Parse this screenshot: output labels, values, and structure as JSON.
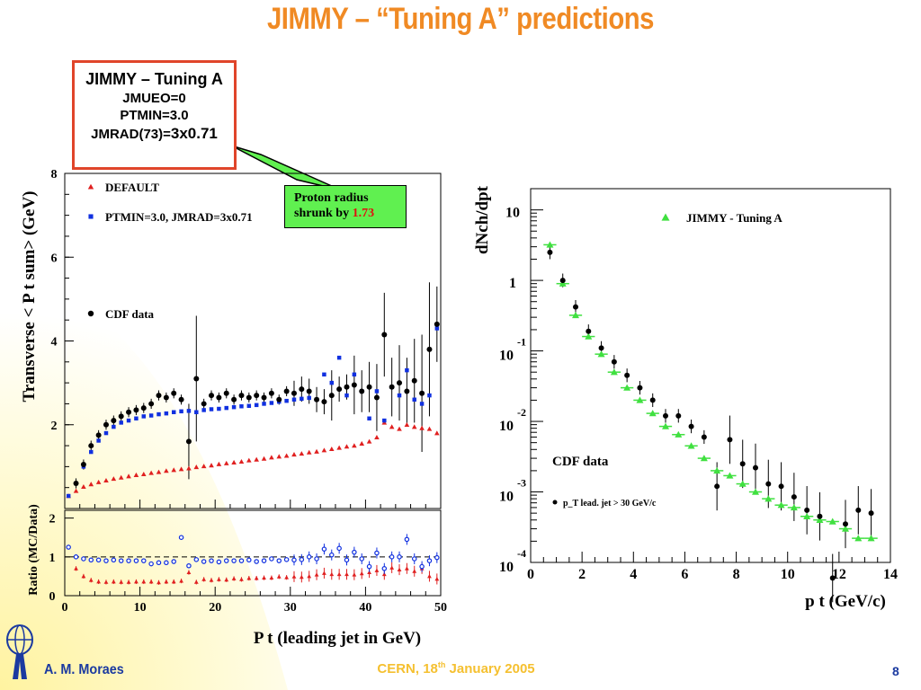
{
  "slide": {
    "title": "JIMMY – “Tuning A” predictions",
    "author": "A. M. Moraes",
    "venue": "CERN, 18",
    "venue_sup": "th",
    "venue_rest": " January 2005",
    "page": "8"
  },
  "tuning_box": {
    "title": "JIMMY – Tuning A",
    "line1": "JMUEO=0",
    "line2": "PTMIN=3.0",
    "line3_prefix": "JMRAD(73)=",
    "line3_value": "3x0.71"
  },
  "note": {
    "text": "Proton radius shrunk by ",
    "value": "1.73",
    "color_bg": "#60f050",
    "color_value": "#e01010"
  },
  "colors": {
    "default": "#e02020",
    "ptmin": "#1030e0",
    "cdf": "#000000",
    "jimmy": "#40e040",
    "title": "#f08a24",
    "box_border": "#e0452a"
  },
  "chart_data": [
    {
      "type": "scatter",
      "ylabel": "Transverse < P_t sum> (GeV)",
      "xlim": [
        0,
        50
      ],
      "ylim": [
        0,
        8
      ],
      "x_ticks": [
        "0",
        "10",
        "20",
        "30",
        "40",
        "50"
      ],
      "y_ticks": [
        "2",
        "4",
        "6",
        "8"
      ],
      "legend": [
        "DEFAULT",
        "PTMIN=3.0, JMRAD=3x0.71",
        "CDF data"
      ],
      "legend_placement": "top-left",
      "series": [
        {
          "name": "DEFAULT",
          "marker": "triangle",
          "x": [
            0.5,
            1.5,
            2.5,
            3.5,
            4.5,
            5.5,
            6.5,
            7.5,
            8.5,
            9.5,
            10.5,
            11.5,
            12.5,
            13.5,
            14.5,
            15.5,
            16.5,
            17.5,
            18.5,
            19.5,
            20.5,
            21.5,
            22.5,
            23.5,
            24.5,
            25.5,
            26.5,
            27.5,
            28.5,
            29.5,
            30.5,
            31.5,
            32.5,
            33.5,
            34.5,
            35.5,
            36.5,
            37.5,
            38.5,
            39.5,
            40.5,
            41.5,
            42.5,
            43.5,
            44.5,
            45.5,
            46.5,
            47.5,
            48.5,
            49.5
          ],
          "y": [
            0.3,
            0.42,
            0.52,
            0.58,
            0.63,
            0.67,
            0.71,
            0.74,
            0.77,
            0.8,
            0.82,
            0.85,
            0.87,
            0.9,
            0.92,
            0.94,
            0.96,
            0.99,
            1.01,
            1.03,
            1.06,
            1.08,
            1.1,
            1.12,
            1.15,
            1.17,
            1.19,
            1.22,
            1.24,
            1.26,
            1.29,
            1.31,
            1.34,
            1.36,
            1.39,
            1.42,
            1.45,
            1.48,
            1.5,
            1.55,
            1.6,
            1.7,
            2.05,
            1.95,
            1.9,
            2.0,
            1.95,
            1.92,
            1.9,
            1.8
          ]
        },
        {
          "name": "PTMIN=3.0, JMRAD=3x0.71",
          "marker": "square",
          "x": [
            0.5,
            1.5,
            2.5,
            3.5,
            4.5,
            5.5,
            6.5,
            7.5,
            8.5,
            9.5,
            10.5,
            11.5,
            12.5,
            13.5,
            14.5,
            15.5,
            16.5,
            17.5,
            18.5,
            19.5,
            20.5,
            21.5,
            22.5,
            23.5,
            24.5,
            25.5,
            26.5,
            27.5,
            28.5,
            29.5,
            30.5,
            31.5,
            32.5,
            33.5,
            34.5,
            35.5,
            36.5,
            37.5,
            38.5,
            39.5,
            40.5,
            41.5,
            42.5,
            43.5,
            44.5,
            45.5,
            46.5,
            47.5,
            48.5,
            49.5
          ],
          "y": [
            0.3,
            0.6,
            1.0,
            1.35,
            1.62,
            1.8,
            1.95,
            2.05,
            2.1,
            2.15,
            2.2,
            2.22,
            2.25,
            2.27,
            2.3,
            2.32,
            2.33,
            2.3,
            2.35,
            2.37,
            2.38,
            2.4,
            2.42,
            2.44,
            2.45,
            2.47,
            2.5,
            2.52,
            2.55,
            2.57,
            2.6,
            2.62,
            2.64,
            2.6,
            3.2,
            3.0,
            3.6,
            2.7,
            3.2,
            2.8,
            2.15,
            2.8,
            2.1,
            2.9,
            2.7,
            3.3,
            2.6,
            2.5,
            2.7,
            4.3
          ]
        },
        {
          "name": "CDF data",
          "marker": "circle",
          "x": [
            1.5,
            2.5,
            3.5,
            4.5,
            5.5,
            6.5,
            7.5,
            8.5,
            9.5,
            10.5,
            11.5,
            12.5,
            13.5,
            14.5,
            15.5,
            16.5,
            17.5,
            18.5,
            19.5,
            20.5,
            21.5,
            22.5,
            23.5,
            24.5,
            25.5,
            26.5,
            27.5,
            28.5,
            29.5,
            30.5,
            31.5,
            32.5,
            33.5,
            34.5,
            35.5,
            36.5,
            37.5,
            38.5,
            39.5,
            40.5,
            41.5,
            42.5,
            43.5,
            44.5,
            45.5,
            46.5,
            47.5,
            48.5,
            49.5
          ],
          "y": [
            0.6,
            1.05,
            1.5,
            1.75,
            2.0,
            2.1,
            2.2,
            2.3,
            2.35,
            2.4,
            2.5,
            2.7,
            2.65,
            2.75,
            2.6,
            1.6,
            3.1,
            2.5,
            2.7,
            2.65,
            2.75,
            2.6,
            2.7,
            2.65,
            2.7,
            2.65,
            2.75,
            2.6,
            2.8,
            2.75,
            2.85,
            2.8,
            2.6,
            2.55,
            2.7,
            2.85,
            2.9,
            2.95,
            2.8,
            2.9,
            2.65,
            4.15,
            2.9,
            3.0,
            2.8,
            3.05,
            2.75,
            3.8,
            4.4
          ]
        }
      ]
    },
    {
      "type": "scatter",
      "ylabel": "Ratio (MC/Data)",
      "xlabel": "P_t (leading jet in GeV)",
      "xlim": [
        0,
        50
      ],
      "ylim": [
        0,
        2.2
      ],
      "y_ticks": [
        "0",
        "1",
        "2"
      ],
      "series": [
        {
          "name": "DEFAULT",
          "marker": "triangle",
          "x": [
            1.5,
            2.5,
            3.5,
            4.5,
            5.5,
            6.5,
            7.5,
            8.5,
            9.5,
            10.5,
            11.5,
            12.5,
            13.5,
            14.5,
            15.5,
            16.5,
            17.5,
            18.5,
            19.5,
            20.5,
            21.5,
            22.5,
            23.5,
            24.5,
            25.5,
            26.5,
            27.5,
            28.5,
            29.5,
            30.5,
            31.5,
            32.5,
            33.5,
            34.5,
            35.5,
            36.5,
            37.5,
            38.5,
            39.5,
            40.5,
            41.5,
            42.5,
            43.5,
            44.5,
            45.5,
            46.5,
            47.5,
            48.5,
            49.5
          ],
          "y": [
            0.7,
            0.5,
            0.4,
            0.36,
            0.35,
            0.36,
            0.35,
            0.35,
            0.36,
            0.36,
            0.36,
            0.34,
            0.36,
            0.36,
            0.38,
            0.6,
            0.35,
            0.42,
            0.4,
            0.42,
            0.41,
            0.44,
            0.42,
            0.45,
            0.45,
            0.46,
            0.46,
            0.49,
            0.47,
            0.49,
            0.48,
            0.5,
            0.54,
            0.58,
            0.55,
            0.55,
            0.55,
            0.54,
            0.57,
            0.6,
            0.65,
            0.55,
            0.72,
            0.67,
            0.7,
            0.63,
            0.7,
            0.5,
            0.43
          ]
        },
        {
          "name": "PTMIN=3.0, JMRAD=3x0.71",
          "marker": "open-circle",
          "x": [
            0.5,
            1.5,
            2.5,
            3.5,
            4.5,
            5.5,
            6.5,
            7.5,
            8.5,
            9.5,
            10.5,
            11.5,
            12.5,
            13.5,
            14.5,
            15.5,
            16.5,
            17.5,
            18.5,
            19.5,
            20.5,
            21.5,
            22.5,
            23.5,
            24.5,
            25.5,
            26.5,
            27.5,
            28.5,
            29.5,
            30.5,
            31.5,
            32.5,
            33.5,
            34.5,
            35.5,
            36.5,
            37.5,
            38.5,
            39.5,
            40.5,
            41.5,
            42.5,
            43.5,
            44.5,
            45.5,
            46.5,
            47.5,
            48.5,
            49.5
          ],
          "y": [
            1.25,
            1.0,
            0.95,
            0.92,
            0.92,
            0.9,
            0.92,
            0.9,
            0.9,
            0.9,
            0.9,
            0.82,
            0.85,
            0.85,
            0.88,
            1.5,
            0.77,
            0.93,
            0.88,
            0.9,
            0.87,
            0.9,
            0.9,
            0.9,
            0.92,
            0.88,
            0.9,
            0.95,
            0.9,
            0.93,
            0.92,
            0.93,
            1.0,
            0.95,
            1.2,
            1.05,
            1.22,
            0.92,
            1.12,
            0.95,
            0.75,
            1.1,
            0.7,
            1.0,
            1.0,
            1.45,
            0.95,
            0.75,
            0.9,
            0.98
          ]
        }
      ]
    },
    {
      "type": "scatter",
      "ylabel": "dN_ch/dp_t",
      "xlabel": "p_t (GeV/c)",
      "y_scale": "log",
      "xlim": [
        0,
        14
      ],
      "ylim": [
        0.0001,
        20
      ],
      "x_ticks": [
        "0",
        "2",
        "4",
        "6",
        "8",
        "10",
        "12",
        "14"
      ],
      "y_ticks": [
        "10",
        "1",
        "10^-1",
        "10^-2",
        "10^-3",
        "10^-4"
      ],
      "legend": [
        "JIMMY - Tuning A"
      ],
      "legend_placement": "top-right",
      "annotations": [
        "CDF data",
        "p_T lead. jet > 30 GeV/c"
      ],
      "series": [
        {
          "name": "JIMMY - Tuning A",
          "marker": "triangle",
          "x": [
            0.75,
            1.25,
            1.75,
            2.25,
            2.75,
            3.25,
            3.75,
            4.25,
            4.75,
            5.25,
            5.75,
            6.25,
            6.75,
            7.25,
            7.75,
            8.25,
            8.75,
            9.25,
            9.75,
            10.25,
            10.75,
            11.25,
            11.75,
            12.25,
            12.75,
            13.25
          ],
          "y": [
            3.2,
            0.9,
            0.32,
            0.16,
            0.09,
            0.05,
            0.03,
            0.02,
            0.013,
            0.0085,
            0.0065,
            0.0045,
            0.003,
            0.002,
            0.0017,
            0.0013,
            0.001,
            0.0008,
            0.00065,
            0.0006,
            0.00045,
            0.0004,
            0.00038,
            0.0003,
            0.00022,
            0.00022
          ]
        },
        {
          "name": "CDF data",
          "marker": "circle",
          "x": [
            0.75,
            1.25,
            1.75,
            2.25,
            2.75,
            3.25,
            3.75,
            4.25,
            4.75,
            5.25,
            5.75,
            6.25,
            6.75,
            7.25,
            7.75,
            8.25,
            8.75,
            9.25,
            9.75,
            10.25,
            10.75,
            11.25,
            11.75,
            12.25,
            12.75,
            13.25
          ],
          "y": [
            2.5,
            1.0,
            0.42,
            0.19,
            0.11,
            0.07,
            0.045,
            0.03,
            0.02,
            0.012,
            0.012,
            0.0085,
            0.006,
            0.0012,
            0.0055,
            0.0025,
            0.0022,
            0.0013,
            0.0012,
            0.00085,
            0.00055,
            0.00045,
            6e-05,
            0.00035,
            0.00055,
            0.0005
          ]
        }
      ]
    }
  ]
}
